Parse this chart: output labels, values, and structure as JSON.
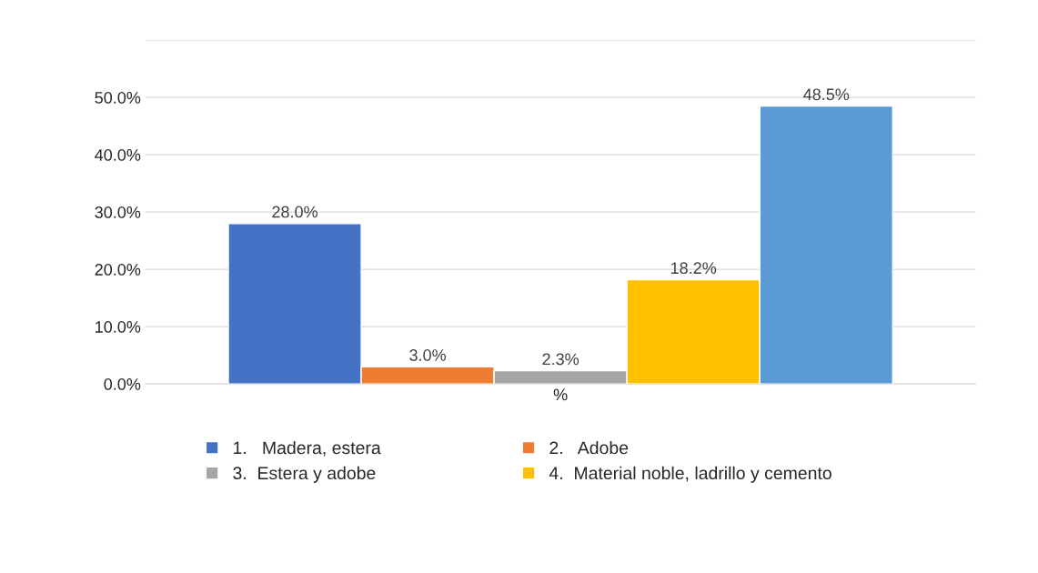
{
  "chart_data": {
    "type": "bar",
    "categories": [
      "%"
    ],
    "series": [
      {
        "name": "1.   Madera, estera",
        "color": "#4472c4",
        "values": [
          28.0
        ],
        "value_labels": [
          "28.0%"
        ]
      },
      {
        "name": "2.   Adobe",
        "color": "#ed7d31",
        "values": [
          3.0
        ],
        "value_labels": [
          "3.0%"
        ]
      },
      {
        "name": "3.  Estera y adobe",
        "color": "#a5a5a5",
        "values": [
          2.3
        ],
        "value_labels": [
          "2.3%"
        ]
      },
      {
        "name": "4.  Material noble, ladrillo y cemento",
        "color": "#ffc000",
        "values": [
          18.2
        ],
        "value_labels": [
          "18.2%"
        ]
      },
      {
        "color": "#5b9bd5",
        "values": [
          48.5
        ],
        "value_labels": [
          "48.5%"
        ]
      }
    ],
    "ylim": [
      0,
      60
    ],
    "yticks": [
      {
        "value": 0,
        "label": "0.0%"
      },
      {
        "value": 10,
        "label": "10.0%"
      },
      {
        "value": 20,
        "label": "20.0%"
      },
      {
        "value": 30,
        "label": "30.0%"
      },
      {
        "value": 40,
        "label": "40.0%"
      },
      {
        "value": 50,
        "label": "50.0%"
      },
      {
        "value": 60,
        "label": null
      }
    ],
    "grid": "y",
    "legend": "bottom"
  }
}
